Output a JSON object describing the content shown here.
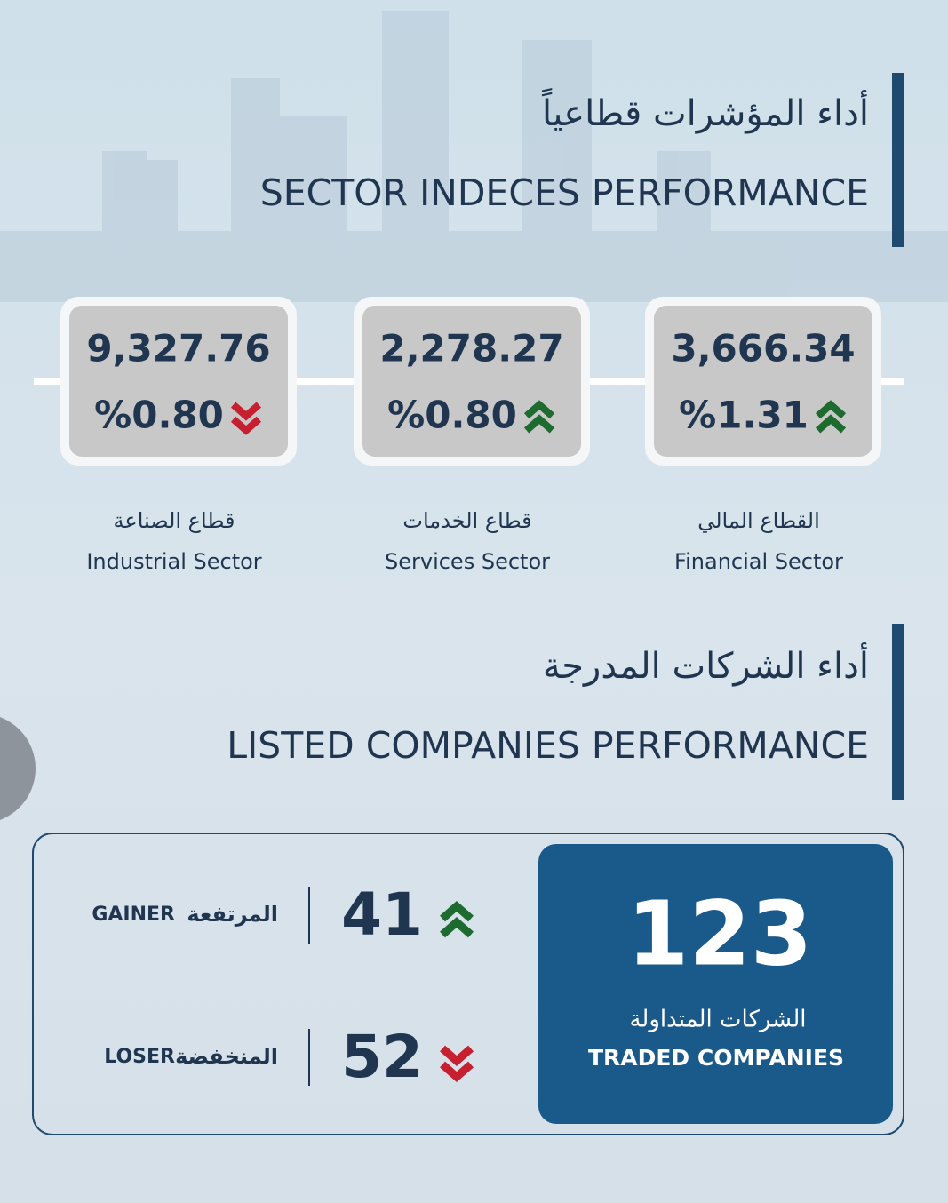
{
  "section1": {
    "title_ar": "أداء المؤشرات قطاعياً",
    "title_en": "SECTOR INDECES PERFORMANCE"
  },
  "sectors": [
    {
      "value": "9,327.76",
      "change": "%0.80",
      "direction": "down",
      "name_ar": "قطاع الصناعة",
      "name_en": "Industrial Sector"
    },
    {
      "value": "2,278.27",
      "change": "%0.80",
      "direction": "up",
      "name_ar": "قطاع الخدمات",
      "name_en": "Services Sector"
    },
    {
      "value": "3,666.34",
      "change": "%1.31",
      "direction": "up",
      "name_ar": "القطاع المالي",
      "name_en": "Financial Sector"
    }
  ],
  "section2": {
    "title_ar": "أداء الشركات المدرجة",
    "title_en": "LISTED COMPANIES PERFORMANCE"
  },
  "gainer": {
    "label_en": "GAINER",
    "label_ar": "المرتفعة",
    "value": "41",
    "direction": "up"
  },
  "loser": {
    "label_en": "LOSER",
    "label_ar": "المنخفضة",
    "value": "52",
    "direction": "down"
  },
  "traded": {
    "value": "123",
    "label_ar": "الشركات المتداولة",
    "label_en": "TRADED COMPANIES"
  }
}
